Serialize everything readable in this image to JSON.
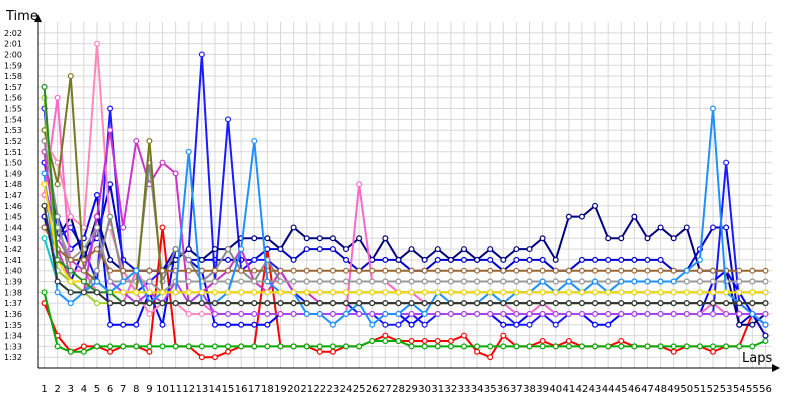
{
  "chart_data": {
    "type": "line",
    "title": "",
    "ylabel": "Time",
    "xlabel": "Laps",
    "grid": true,
    "y_tick_labels": [
      "1:32",
      "1:33",
      "1:34",
      "1:35",
      "1:36",
      "1:37",
      "1:38",
      "1:39",
      "1:40",
      "1:41",
      "1:42",
      "1:43",
      "1:44",
      "1:45",
      "1:46",
      "1:47",
      "1:48",
      "1:49",
      "1:50",
      "1:51",
      "1:52",
      "1:53",
      "1:54",
      "1:55",
      "1:56",
      "1:57",
      "1:58",
      "1:59",
      "2:00",
      "2:01",
      "2:02"
    ],
    "ylim": [
      91,
      123
    ],
    "x": [
      1,
      2,
      3,
      4,
      5,
      6,
      7,
      8,
      9,
      10,
      11,
      12,
      13,
      14,
      15,
      16,
      17,
      18,
      19,
      20,
      21,
      22,
      23,
      24,
      25,
      26,
      27,
      28,
      29,
      30,
      31,
      32,
      33,
      34,
      35,
      36,
      37,
      38,
      39,
      40,
      41,
      42,
      43,
      44,
      45,
      46,
      47,
      48,
      49,
      50,
      51,
      52,
      53,
      54,
      55,
      56
    ],
    "xlim": [
      0.5,
      56.5
    ],
    "series": [
      {
        "color": "#ff0000",
        "values": [
          97,
          94,
          92.5,
          93,
          93,
          92.5,
          93,
          93,
          92.5,
          104,
          93,
          93,
          92,
          92,
          92.5,
          93,
          93,
          102,
          93,
          93,
          93,
          92.5,
          92.5,
          93,
          93,
          93.5,
          94,
          93.5,
          93.5,
          93.5,
          93.5,
          93.5,
          94,
          92.5,
          92,
          94,
          93,
          93,
          93.5,
          93,
          93.5,
          93,
          93,
          93,
          93.5,
          93,
          93,
          93,
          92.5,
          93,
          93,
          92.5,
          93,
          93,
          96,
          94
        ]
      },
      {
        "color": "#00aa00",
        "values": [
          98,
          93,
          92.5,
          92.5,
          93,
          93,
          93,
          93,
          93,
          93,
          93,
          93,
          93,
          93,
          93,
          93,
          93,
          93,
          93,
          93,
          93,
          93,
          93,
          93,
          93,
          93.5,
          93.5,
          93.5,
          93,
          93,
          93,
          93,
          93,
          93,
          93,
          93,
          93,
          93,
          93,
          93,
          93,
          93,
          93,
          93,
          93,
          93,
          93,
          93,
          93,
          93,
          93,
          93,
          93,
          93,
          93,
          93.5
        ]
      },
      {
        "color": "#0000cc",
        "values": [
          105,
          100,
          99,
          102,
          103,
          108,
          101,
          100,
          100,
          100,
          102,
          101,
          101,
          101,
          101,
          101,
          101,
          102,
          102,
          101,
          102,
          102,
          102,
          101,
          100,
          101,
          101,
          101,
          100,
          100,
          101,
          101,
          101,
          101,
          101,
          100,
          101,
          101,
          101,
          100,
          100,
          101,
          101,
          101,
          101,
          101,
          101,
          101,
          100,
          100,
          102,
          104,
          104,
          95,
          96,
          94
        ]
      },
      {
        "color": "#0000ff",
        "values": [
          110,
          105,
          102,
          103,
          107,
          95,
          95,
          95,
          98,
          95,
          102,
          101,
          100,
          95,
          95,
          95,
          95,
          95,
          96,
          96,
          96,
          96,
          96,
          96,
          96,
          96,
          96,
          96,
          95,
          96,
          96,
          96,
          96,
          96,
          96,
          95,
          95,
          96,
          96,
          96,
          96,
          96,
          95,
          95,
          96,
          96,
          96,
          96,
          96,
          96,
          96,
          99,
          100,
          98,
          96,
          95
        ]
      },
      {
        "color": "#1a1aff",
        "values": [
          115,
          103,
          104,
          102,
          99,
          115,
          100,
          98,
          99,
          100,
          101,
          102,
          120,
          99,
          114,
          100,
          101,
          101,
          100,
          98,
          97,
          97,
          97,
          97,
          96,
          96,
          95,
          95,
          96,
          95,
          96,
          96,
          96,
          96,
          96,
          96,
          95,
          95,
          96,
          95,
          96,
          96,
          96,
          96,
          96,
          96,
          96,
          96,
          96,
          96,
          96,
          96,
          110,
          97,
          96,
          95
        ]
      },
      {
        "color": "#000080",
        "values": [
          104,
          103,
          105,
          101,
          105,
          101,
          100,
          100,
          100,
          100,
          101,
          102,
          101,
          102,
          102,
          103,
          103,
          103,
          102,
          104,
          103,
          103,
          103,
          102,
          103,
          101,
          103,
          101,
          102,
          101,
          102,
          101,
          102,
          101,
          102,
          101,
          102,
          102,
          103,
          101,
          105,
          105,
          106,
          103,
          103,
          105,
          103,
          104,
          103,
          104,
          100,
          100,
          100,
          95,
          95,
          96
        ]
      },
      {
        "color": "#ff66cc",
        "values": [
          107,
          116,
          100,
          100,
          98,
          98,
          97,
          100,
          98,
          97,
          97,
          97,
          97,
          96,
          96,
          96,
          96,
          96,
          96,
          96,
          96,
          96,
          96,
          96,
          108,
          99,
          99,
          98,
          98,
          97,
          97,
          97,
          97,
          97,
          97,
          97,
          96,
          96,
          97,
          96,
          96,
          96,
          96,
          96,
          96,
          96,
          96,
          96,
          96,
          96,
          96,
          97,
          96,
          96,
          96,
          95
        ]
      },
      {
        "color": "#ff88bb",
        "values": [
          112,
          110,
          105,
          104,
          121,
          104,
          100,
          98,
          96,
          97,
          97,
          96,
          96,
          96,
          96,
          96,
          96,
          96,
          96,
          96,
          96,
          96,
          96,
          96,
          96,
          96,
          96,
          96,
          96,
          96,
          96,
          96,
          96,
          96,
          96,
          96,
          96,
          96,
          96,
          96,
          96,
          96,
          96,
          96,
          96,
          96,
          96,
          96,
          96,
          96,
          96,
          96,
          96,
          96,
          96,
          96
        ]
      },
      {
        "color": "#cc33cc",
        "values": [
          111,
          102,
          99,
          98,
          105,
          113,
          104,
          112,
          108,
          110,
          109,
          97,
          98,
          99,
          100,
          102,
          99,
          98,
          100,
          98,
          98,
          97,
          97,
          97,
          97,
          97,
          97,
          97,
          97,
          97,
          97,
          97,
          97,
          97,
          97,
          97,
          97,
          97,
          97,
          97,
          97,
          97,
          97,
          97,
          97,
          97,
          97,
          97,
          97,
          97,
          97,
          97,
          97,
          97,
          97,
          97
        ]
      },
      {
        "color": "#aa44ee",
        "values": [
          108,
          103,
          101,
          100,
          104,
          99,
          98,
          97,
          98,
          97,
          99,
          97,
          98,
          96,
          96,
          96,
          96,
          96,
          96,
          96,
          96,
          96,
          96,
          96,
          96,
          96,
          96,
          96,
          96,
          96,
          96,
          96,
          96,
          96,
          96,
          96,
          96,
          96,
          96,
          96,
          96,
          96,
          96,
          96,
          96,
          96,
          96,
          96,
          96,
          96,
          96,
          96,
          96,
          96,
          96,
          96
        ]
      },
      {
        "color": "#888888",
        "values": [
          112,
          105,
          99,
          98,
          100,
          105,
          99,
          99,
          110,
          99,
          102,
          101,
          99,
          100,
          102,
          100,
          99,
          101,
          99,
          99,
          99,
          99,
          99,
          99,
          99,
          99,
          99,
          99,
          99,
          99,
          99,
          99,
          99,
          99,
          99,
          99,
          99,
          99,
          99,
          99,
          99,
          99,
          99,
          99,
          99,
          99,
          99,
          99,
          99,
          99,
          99,
          99,
          99,
          99,
          99,
          99
        ]
      },
      {
        "color": "#999999",
        "values": [
          106,
          104,
          101,
          102,
          104,
          99,
          99,
          99,
          99,
          98,
          99,
          99,
          99,
          99,
          99,
          99,
          99,
          99,
          99,
          99,
          99,
          99,
          99,
          99,
          99,
          99,
          99,
          99,
          99,
          99,
          99,
          99,
          99,
          99,
          99,
          99,
          99,
          99,
          99,
          99,
          99,
          99,
          99,
          99,
          99,
          99,
          99,
          99,
          99,
          99,
          99,
          99,
          99,
          99,
          99,
          99
        ]
      },
      {
        "color": "#777722",
        "values": [
          113,
          108,
          118,
          100,
          99,
          98,
          98,
          98,
          112,
          98,
          98,
          98,
          98,
          98,
          98,
          98,
          98,
          98,
          98,
          98,
          98,
          98,
          98,
          98,
          98,
          98,
          98,
          98,
          98,
          98,
          98,
          98,
          98,
          98,
          98,
          98,
          98,
          98,
          98,
          98,
          98,
          98,
          98,
          98,
          98,
          98,
          98,
          98,
          98,
          98,
          98,
          98,
          98,
          98,
          98,
          98
        ]
      },
      {
        "color": "#996633",
        "values": [
          104,
          102,
          101,
          101,
          102,
          100,
          100,
          100,
          100,
          100,
          100,
          100,
          100,
          100,
          100,
          100,
          100,
          100,
          100,
          100,
          100,
          100,
          100,
          100,
          100,
          100,
          100,
          100,
          100,
          100,
          100,
          100,
          100,
          100,
          100,
          100,
          100,
          100,
          100,
          100,
          100,
          100,
          100,
          100,
          100,
          100,
          100,
          100,
          100,
          100,
          100,
          100,
          100,
          100,
          100,
          100
        ]
      },
      {
        "color": "#00cccc",
        "values": [
          103,
          99,
          98,
          98,
          98,
          98,
          98,
          98,
          98,
          98,
          98,
          98,
          98,
          98,
          98,
          98,
          98,
          98,
          98,
          98,
          98,
          98,
          98,
          98,
          98,
          98,
          98,
          98,
          98,
          98,
          98,
          98,
          98,
          98,
          98,
          98,
          98,
          98,
          98,
          98,
          98,
          98,
          98,
          98,
          98,
          98,
          98,
          98,
          98,
          98,
          98,
          98,
          98,
          98,
          98,
          98
        ]
      },
      {
        "color": "#1e90ff",
        "values": [
          109,
          98,
          97,
          98,
          99,
          98,
          99,
          100,
          97,
          98,
          98,
          111,
          97,
          97,
          98,
          102,
          112,
          99,
          98,
          98,
          96,
          96,
          95,
          96,
          97,
          95,
          96,
          96,
          97,
          96,
          98,
          97,
          97,
          97,
          98,
          97,
          98,
          98,
          99,
          98,
          99,
          98,
          99,
          98,
          99,
          99,
          99,
          99,
          99,
          100,
          101,
          115,
          98,
          97,
          96,
          95
        ]
      },
      {
        "color": "#9acd32",
        "values": [
          116,
          100,
          99,
          98,
          97,
          97,
          97,
          97,
          97,
          97,
          97,
          97,
          97,
          97,
          97,
          97,
          97,
          97,
          97,
          97,
          97,
          97,
          97,
          97,
          97,
          97,
          97,
          97,
          97,
          97,
          97,
          97,
          97,
          97,
          97,
          97,
          97,
          97,
          97,
          97,
          97,
          97,
          97,
          97,
          97,
          97,
          97,
          97,
          97,
          97,
          97,
          97,
          97,
          97,
          97,
          97
        ]
      },
      {
        "color": "#ffd700",
        "values": [
          108,
          101,
          99,
          99,
          98,
          98,
          98,
          98,
          98,
          98,
          98,
          98,
          98,
          98,
          98,
          98,
          98,
          98,
          98,
          98,
          98,
          98,
          98,
          98,
          98,
          98,
          98,
          98,
          98,
          98,
          98,
          98,
          98,
          98,
          98,
          98,
          98,
          98,
          98,
          98,
          98,
          98,
          98,
          98,
          98,
          98,
          98,
          98,
          98,
          98,
          98,
          98,
          98,
          98,
          98,
          98
        ]
      },
      {
        "color": "#228b22",
        "values": [
          117,
          101,
          100,
          99,
          98,
          98,
          97,
          97,
          97,
          97,
          97,
          97,
          97,
          97,
          97,
          97,
          97,
          97,
          97,
          97,
          97,
          97,
          97,
          97,
          97,
          97,
          97,
          97,
          97,
          97,
          97,
          97,
          97,
          97,
          97,
          97,
          97,
          97,
          97,
          97,
          97,
          97,
          97,
          97,
          97,
          97,
          97,
          97,
          97,
          97,
          97,
          97,
          97,
          97,
          97,
          97
        ]
      },
      {
        "color": "#333333",
        "values": [
          106,
          99,
          98,
          98,
          98,
          97,
          97,
          97,
          97,
          97,
          97,
          97,
          97,
          97,
          97,
          97,
          97,
          97,
          97,
          97,
          97,
          97,
          97,
          97,
          97,
          97,
          97,
          97,
          97,
          97,
          97,
          97,
          97,
          97,
          97,
          97,
          97,
          97,
          97,
          97,
          97,
          97,
          97,
          97,
          97,
          97,
          97,
          97,
          97,
          97,
          97,
          97,
          97,
          97,
          97,
          97
        ]
      }
    ]
  }
}
